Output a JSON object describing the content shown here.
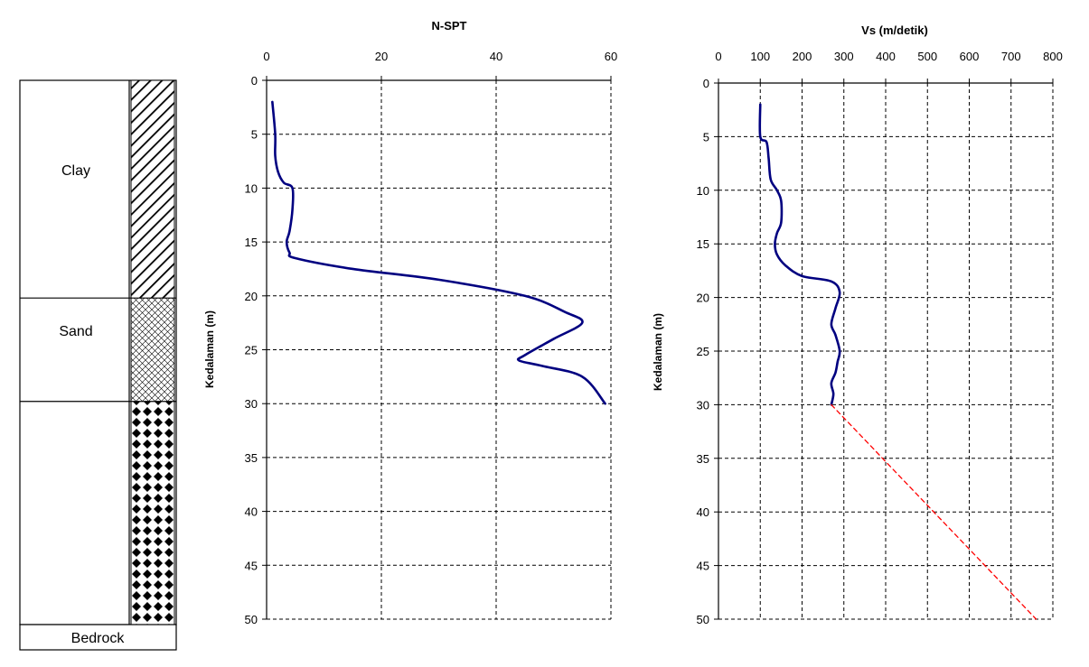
{
  "soil_profile": {
    "layers": [
      {
        "name": "Clay",
        "from": 0,
        "to": 20,
        "pattern": "diagonal-hatch"
      },
      {
        "name": "Sand",
        "from": 20,
        "to": 29.5,
        "pattern": "cross-hatch"
      },
      {
        "name": "",
        "from": 29.5,
        "to": 50,
        "pattern": "diamond"
      }
    ],
    "bedrock_label": "Bedrock"
  },
  "chart_data": [
    {
      "type": "line",
      "title": "N-SPT",
      "xlabel": "",
      "ylabel": "Kedalaman (m)",
      "xlim": [
        0,
        60
      ],
      "ylim": [
        0,
        50
      ],
      "y_inverted": true,
      "x_axis_position": "top",
      "grid": true,
      "xticks": [
        0,
        20,
        40,
        60
      ],
      "yticks": [
        0,
        5,
        10,
        15,
        20,
        25,
        30,
        35,
        40,
        45,
        50
      ],
      "series": [
        {
          "color": "#000080",
          "style": "solid",
          "x": [
            1,
            1.5,
            1.5,
            2,
            3,
            4.5,
            4.5,
            4,
            3.5,
            4,
            5,
            15,
            30,
            45,
            52,
            55,
            50,
            45,
            44,
            48,
            55,
            59
          ],
          "y": [
            2,
            5,
            7,
            8.5,
            9.5,
            10,
            12,
            14,
            15,
            16,
            16.5,
            17.5,
            18.5,
            20,
            21.5,
            22.5,
            24,
            25.5,
            26,
            26.5,
            27.5,
            30
          ]
        }
      ]
    },
    {
      "type": "line",
      "title": "Vs (m/detik)",
      "xlabel": "",
      "ylabel": "Kedalaman (m)",
      "xlim": [
        0,
        800
      ],
      "ylim": [
        0,
        50
      ],
      "y_inverted": true,
      "x_axis_position": "top",
      "grid": true,
      "xticks": [
        0,
        100,
        200,
        300,
        400,
        500,
        600,
        700,
        800
      ],
      "yticks": [
        0,
        5,
        10,
        15,
        20,
        25,
        30,
        35,
        40,
        45,
        50
      ],
      "series": [
        {
          "color": "#000080",
          "style": "solid",
          "x": [
            100,
            100,
            115,
            120,
            125,
            140,
            150,
            150,
            140,
            135,
            140,
            160,
            200,
            270,
            290,
            280,
            270,
            280,
            290,
            285,
            280,
            270,
            275,
            270
          ],
          "y": [
            2,
            5,
            5.5,
            7,
            9,
            10,
            11,
            13,
            14,
            15,
            16,
            17,
            18,
            18.5,
            19.5,
            21,
            22.5,
            23.5,
            25,
            26,
            27,
            28,
            29,
            30
          ]
        },
        {
          "color": "#ff0000",
          "style": "dashed",
          "x": [
            270,
            760
          ],
          "y": [
            30,
            50
          ]
        }
      ]
    }
  ]
}
